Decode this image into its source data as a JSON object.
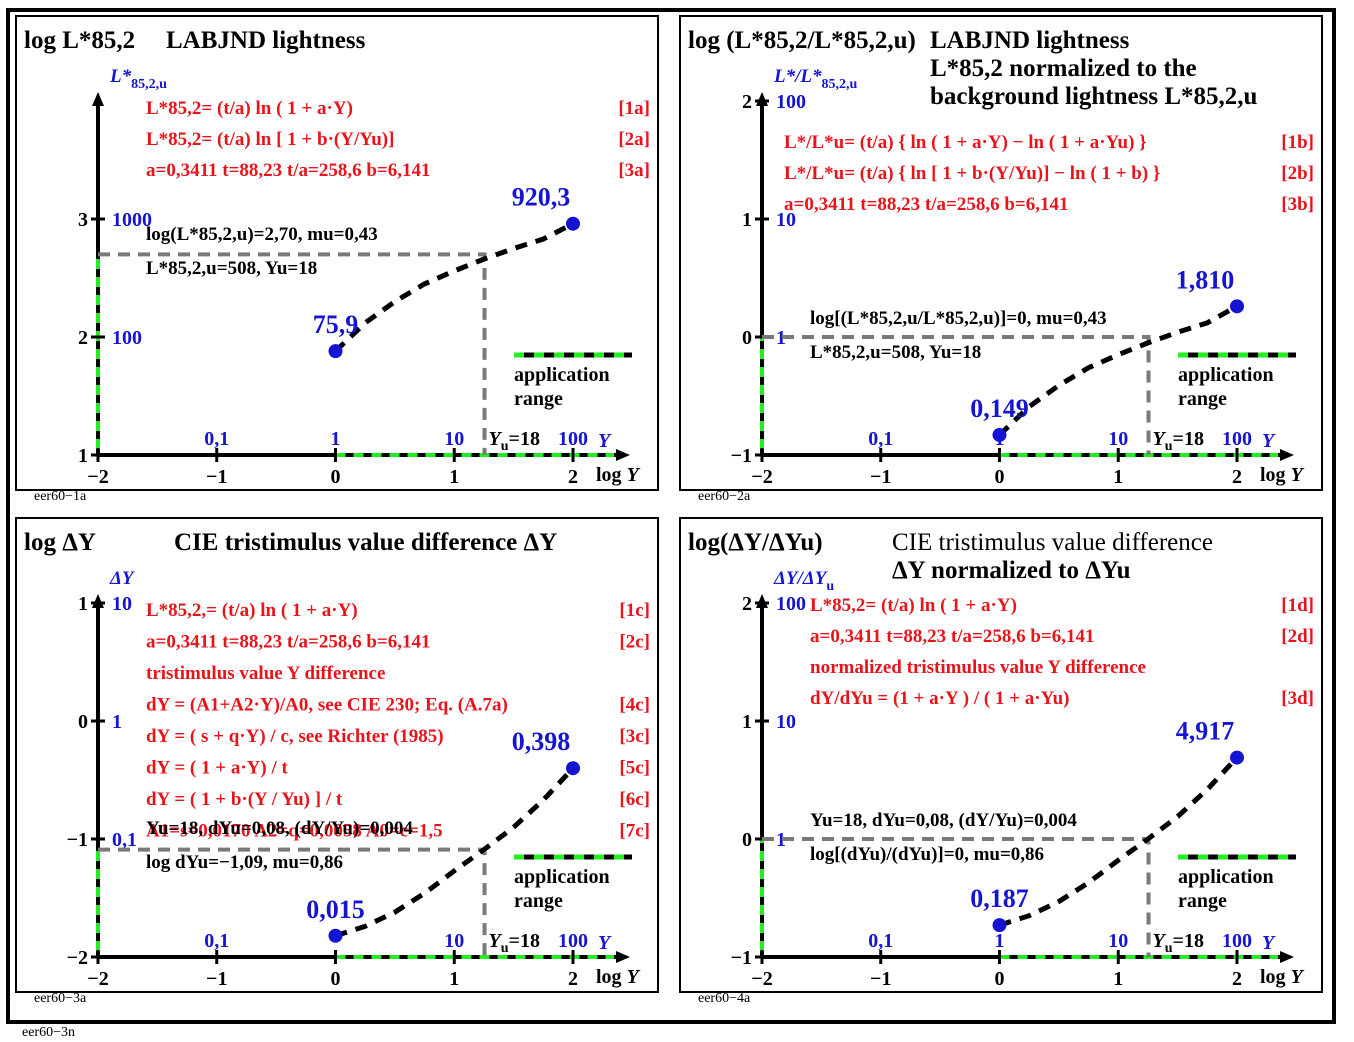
{
  "footer_label": "eer60−3n",
  "colors": {
    "red": "#e8141c",
    "blue": "#1414d2",
    "black": "#000000",
    "green": "#22ee22",
    "grey": "#7a7a7a"
  },
  "chart_data": [
    {
      "type": "line",
      "id": "eer60-1a",
      "code": "eer60−1a",
      "title_prefix": "log ",
      "title_L": "L*",
      "title_sub": "85,2",
      "title_rest": " LABJND lightness",
      "y_axis_label": "L*",
      "y_axis_label_sub": "85,2,u",
      "ylim": [
        1,
        3
      ],
      "y_ticks": [
        1,
        2,
        3
      ],
      "y_tick_labels": [
        "1",
        "2",
        "3"
      ],
      "y_value_labels": [
        {
          "y": 2,
          "text": "100"
        },
        {
          "y": 3,
          "text": "1000"
        }
      ],
      "x_ticks": [
        -2,
        -1,
        0,
        1,
        2
      ],
      "x_tick_labels": [
        "−2",
        "−1",
        "0",
        "1",
        "2"
      ],
      "x_value_labels": [
        "0,1",
        "1",
        "10",
        "100"
      ],
      "xlabel": "log Y",
      "x_value_axis": "Y",
      "series_x": [
        0,
        0.25,
        0.5,
        0.75,
        1.0,
        1.25,
        1.5,
        1.75,
        2.0
      ],
      "series_y": [
        1.88,
        2.12,
        2.3,
        2.45,
        2.56,
        2.66,
        2.75,
        2.83,
        2.96
      ],
      "end_points": [
        {
          "x": 0,
          "y": 1.88,
          "label": "75,9"
        },
        {
          "x": 2,
          "y": 2.96,
          "label": "920,3"
        }
      ],
      "ref_point": {
        "x": 1.255,
        "y": 2.7
      },
      "ref_y_label": "Y",
      "ref_y_label_sub": "u",
      "ref_y_label_rest": "=18",
      "formulas": [
        {
          "text": "L*85,2= (t/a) ln ( 1 + a·Y)",
          "tag": "[1a]"
        },
        {
          "text": "L*85,2= (t/a) ln [ 1 + b·(Y/Yu)]",
          "tag": "[2a]"
        },
        {
          "text": "a=0,3411    t=88,23      t/a=258,6    b=6,141",
          "tag": "[3a]"
        }
      ],
      "notes": [
        "log(L*85,2,u)=2,70, mu=0,43",
        "L*85,2,u=508, Yu=18"
      ],
      "app_range_label": [
        "application",
        "range"
      ]
    },
    {
      "type": "line",
      "id": "eer60-2a",
      "code": "eer60−2a",
      "title_prefix": "log (L*85,2/L*85,2,u)",
      "title_rest": "LABJND lightness",
      "subtitle": [
        "L*85,2 normalized to the",
        "background lightness L*85,2,u"
      ],
      "y_axis_label": "L*/L*",
      "y_axis_label_sub": "85,2,u",
      "ylim": [
        -1,
        2
      ],
      "y_ticks": [
        -1,
        0,
        1,
        2
      ],
      "y_tick_labels": [
        "−1",
        "0",
        "1",
        "2"
      ],
      "y_value_labels": [
        {
          "y": 0,
          "text": "1"
        },
        {
          "y": 1,
          "text": "10"
        },
        {
          "y": 2,
          "text": "100"
        }
      ],
      "x_ticks": [
        -2,
        -1,
        0,
        1,
        2
      ],
      "x_tick_labels": [
        "−2",
        "−1",
        "0",
        "1",
        "2"
      ],
      "x_value_labels": [
        "0,1",
        "1",
        "10",
        "100"
      ],
      "xlabel": "log Y",
      "x_value_axis": "Y",
      "series_x": [
        0,
        0.25,
        0.5,
        0.75,
        1.0,
        1.25,
        1.5,
        1.75,
        2.0
      ],
      "series_y": [
        -0.83,
        -0.59,
        -0.41,
        -0.26,
        -0.15,
        -0.05,
        0.04,
        0.12,
        0.26
      ],
      "end_points": [
        {
          "x": 0,
          "y": -0.83,
          "label": "0,149"
        },
        {
          "x": 2,
          "y": 0.26,
          "label": "1,810"
        }
      ],
      "ref_point": {
        "x": 1.255,
        "y": 0
      },
      "ref_y_label": "Y",
      "ref_y_label_sub": "u",
      "ref_y_label_rest": "=18",
      "formulas": [
        {
          "text": "L*/L*u= (t/a) { ln ( 1 + a·Y) − ln ( 1 + a·Yu) }",
          "tag": "[1b]"
        },
        {
          "text": "L*/L*u= (t/a) { ln [ 1 + b·(Y/Yu)] − ln ( 1 + b) }",
          "tag": "[2b]"
        },
        {
          "text": "a=0,3411    t=88,23      t/a=258,6    b=6,141",
          "tag": "[3b]"
        }
      ],
      "notes": [
        "log[(L*85,2,u/L*85,2,u)]=0, mu=0,43",
        "L*85,2,u=508, Yu=18"
      ],
      "app_range_label": [
        "application",
        "range"
      ]
    },
    {
      "type": "line",
      "id": "eer60-3a",
      "code": "eer60−3a",
      "title_prefix": "log ΔY",
      "title_rest": "CIE tristimulus value difference ΔY",
      "y_axis_label": "ΔY",
      "ylim": [
        -2,
        1
      ],
      "y_ticks": [
        -2,
        -1,
        0,
        1
      ],
      "y_tick_labels": [
        "−2",
        "−1",
        "0",
        "1"
      ],
      "y_value_labels": [
        {
          "y": -1,
          "text": "0,1"
        },
        {
          "y": 0,
          "text": "1"
        },
        {
          "y": 1,
          "text": "10"
        }
      ],
      "x_ticks": [
        -2,
        -1,
        0,
        1,
        2
      ],
      "x_tick_labels": [
        "−2",
        "−1",
        "0",
        "1",
        "2"
      ],
      "x_value_labels": [
        "0,1",
        "10",
        "100"
      ],
      "xlabel": "log Y",
      "x_value_axis": "Y",
      "series_x": [
        0,
        0.25,
        0.5,
        0.75,
        1.0,
        1.25,
        1.5,
        1.75,
        2.0
      ],
      "series_y": [
        -1.82,
        -1.74,
        -1.62,
        -1.46,
        -1.27,
        -1.09,
        -0.9,
        -0.67,
        -0.4
      ],
      "end_points": [
        {
          "x": 0,
          "y": -1.82,
          "label": "0,015"
        },
        {
          "x": 2,
          "y": -0.4,
          "label": "0,398"
        }
      ],
      "ref_point": {
        "x": 1.255,
        "y": -1.09
      },
      "ref_y_label": "Y",
      "ref_y_label_sub": "u",
      "ref_y_label_rest": "=18",
      "formulas": [
        {
          "text": "L*85,2,= (t/a) ln ( 1 + a·Y)",
          "tag": "[1c]"
        },
        {
          "text": "a=0,3411    t=88,23      t/a=258,6    b=6,141",
          "tag": "[2c]"
        },
        {
          "text": "tristimulus value Y difference",
          "tag": ""
        },
        {
          "text": "dY = (A1+A2·Y)/A0,  see CIE 230; Eq. (A.7a)",
          "tag": "[4c]"
        },
        {
          "text": "dY = ( s + q·Y) / c,  see Richter (1985)",
          "tag": "[3c]"
        },
        {
          "text": "dY = ( 1 + a·Y) / t",
          "tag": "[5c]"
        },
        {
          "text": "dY = ( 1 + b·(Y / Yu) ] / t",
          "tag": "[6c]"
        },
        {
          "text": "A1=s=0,0170  A2=q=0,0058  A0=c=1,5",
          "tag": "[7c]"
        }
      ],
      "notes": [
        "Yu=18, dYu=0,08, (dY/Yu)=0,004",
        "log dYu=−1,09, mu=0,86"
      ],
      "app_range_label": [
        "application",
        "range"
      ]
    },
    {
      "type": "line",
      "id": "eer60-4a",
      "code": "eer60−4a",
      "title_prefix": "log(ΔY/ΔYu)",
      "title_rest": "CIE tristimulus value difference",
      "subtitle": [
        "ΔY normalized to ΔYu"
      ],
      "y_axis_label": "ΔY/ΔY",
      "y_axis_label_sub": "u",
      "ylim": [
        -1,
        2
      ],
      "y_ticks": [
        -1,
        0,
        1,
        2
      ],
      "y_tick_labels": [
        "−1",
        "0",
        "1",
        "2"
      ],
      "y_value_labels": [
        {
          "y": 0,
          "text": "1"
        },
        {
          "y": 1,
          "text": "10"
        },
        {
          "y": 2,
          "text": "100"
        }
      ],
      "x_ticks": [
        -2,
        -1,
        0,
        1,
        2
      ],
      "x_tick_labels": [
        "−2",
        "−1",
        "0",
        "1",
        "2"
      ],
      "x_value_labels": [
        "0,1",
        "1",
        "10",
        "100"
      ],
      "xlabel": "log Y",
      "x_value_axis": "Y",
      "series_x": [
        0,
        0.25,
        0.5,
        0.75,
        1.0,
        1.25,
        1.5,
        1.75,
        2.0
      ],
      "series_y": [
        -0.73,
        -0.65,
        -0.53,
        -0.37,
        -0.18,
        0.0,
        0.19,
        0.42,
        0.69
      ],
      "end_points": [
        {
          "x": 0,
          "y": -0.73,
          "label": "0,187"
        },
        {
          "x": 2,
          "y": 0.69,
          "label": "4,917"
        }
      ],
      "ref_point": {
        "x": 1.255,
        "y": 0
      },
      "ref_y_label": "Y",
      "ref_y_label_sub": "u",
      "ref_y_label_rest": "=18",
      "formulas": [
        {
          "text": "L*85,2= (t/a) ln ( 1 + a·Y)",
          "tag": "[1d]"
        },
        {
          "text": "a=0,3411    t=88,23      t/a=258,6    b=6,141",
          "tag": "[2d]"
        },
        {
          "text": "normalized tristimulus value Y difference",
          "tag": ""
        },
        {
          "text": "dY/dYu = (1 + a·Y ) / ( 1 + a·Yu)",
          "tag": "[3d]"
        }
      ],
      "notes": [
        "Yu=18, dYu=0,08, (dY/Yu)=0,004",
        "log[(dYu)/(dYu)]=0, mu=0,86"
      ],
      "app_range_label": [
        "application",
        "range"
      ]
    }
  ]
}
